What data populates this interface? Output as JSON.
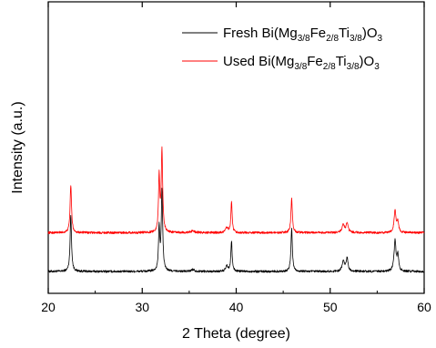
{
  "chart_data": {
    "type": "line",
    "title": "",
    "xlabel": "2 Theta (degree)",
    "ylabel": "Intensity (a.u.)",
    "xlim": [
      20,
      60
    ],
    "x_ticks": [
      20,
      30,
      40,
      50,
      60
    ],
    "y_ticks_labeled": false,
    "grid": false,
    "legend_placement": "top-right",
    "series": [
      {
        "name": "Fresh Bi(Mg3/8Fe2/8Ti3/8)O3",
        "legend": {
          "base": "Fresh Bi(Mg",
          "s1": "3/8",
          "m1": "Fe",
          "s2": "2/8",
          "m2": "Ti",
          "s3": "3/8",
          "end": ")O",
          "s4": "3"
        },
        "color": "#000000",
        "baseline": 0.0,
        "peaks": [
          {
            "x": 22.4,
            "h": 0.55,
            "w": 0.09
          },
          {
            "x": 31.8,
            "h": 0.42,
            "w": 0.08
          },
          {
            "x": 32.1,
            "h": 0.78,
            "w": 0.09
          },
          {
            "x": 35.4,
            "h": 0.02,
            "w": 0.2
          },
          {
            "x": 39.0,
            "h": 0.05,
            "w": 0.15
          },
          {
            "x": 39.5,
            "h": 0.3,
            "w": 0.08
          },
          {
            "x": 45.9,
            "h": 0.42,
            "w": 0.09
          },
          {
            "x": 51.4,
            "h": 0.1,
            "w": 0.15
          },
          {
            "x": 51.8,
            "h": 0.13,
            "w": 0.12
          },
          {
            "x": 56.9,
            "h": 0.3,
            "w": 0.12
          },
          {
            "x": 57.2,
            "h": 0.15,
            "w": 0.1
          }
        ]
      },
      {
        "name": "Used Bi(Mg3/8Fe2/8Ti3/8)O3",
        "legend": {
          "base": "Used Bi(Mg",
          "s1": "3/8",
          "m1": "Fe",
          "s2": "2/8",
          "m2": "Ti",
          "s3": "3/8",
          "end": ")O",
          "s4": "3"
        },
        "color": "#ff0000",
        "baseline": 0.38,
        "peaks": [
          {
            "x": 22.4,
            "h": 0.47,
            "w": 0.09
          },
          {
            "x": 31.8,
            "h": 0.55,
            "w": 0.08
          },
          {
            "x": 32.1,
            "h": 0.8,
            "w": 0.09
          },
          {
            "x": 35.4,
            "h": 0.02,
            "w": 0.2
          },
          {
            "x": 39.0,
            "h": 0.05,
            "w": 0.15
          },
          {
            "x": 39.5,
            "h": 0.3,
            "w": 0.08
          },
          {
            "x": 45.9,
            "h": 0.33,
            "w": 0.09
          },
          {
            "x": 51.4,
            "h": 0.08,
            "w": 0.15
          },
          {
            "x": 51.8,
            "h": 0.09,
            "w": 0.12
          },
          {
            "x": 56.9,
            "h": 0.22,
            "w": 0.12
          },
          {
            "x": 57.2,
            "h": 0.1,
            "w": 0.1
          }
        ]
      }
    ]
  }
}
